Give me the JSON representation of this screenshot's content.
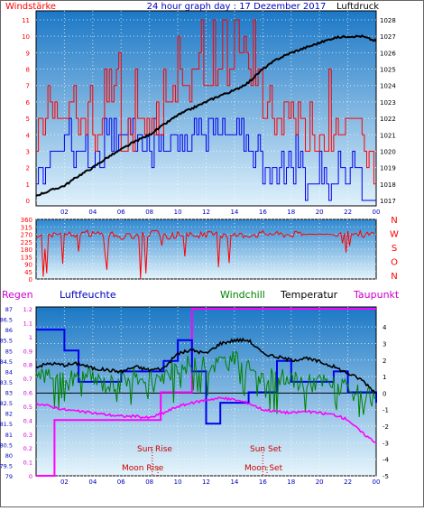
{
  "chart_data": [
    {
      "type": "line",
      "title": "24 hour graph day : 17 Dezember 2017",
      "left_label": "Windstärke",
      "right_label": "Luftdruck",
      "x_ticks": [
        "02",
        "04",
        "06",
        "08",
        "10",
        "12",
        "14",
        "16",
        "18",
        "20",
        "22",
        "00"
      ],
      "y_left_ticks": [
        "0",
        "1",
        "2",
        "3",
        "4",
        "5",
        "6",
        "7",
        "8",
        "9",
        "10",
        "11"
      ],
      "y_right_ticks": [
        "1017",
        "1018",
        "1019",
        "1020",
        "1021",
        "1022",
        "1023",
        "1024",
        "1025",
        "1026",
        "1027",
        "1028"
      ],
      "pressure_hourly": [
        [
          0,
          1017.3
        ],
        [
          1,
          1017.6
        ],
        [
          2,
          1017.9
        ],
        [
          3,
          1018.5
        ],
        [
          4,
          1019.0
        ],
        [
          5,
          1019.6
        ],
        [
          6,
          1020.1
        ],
        [
          7,
          1020.6
        ],
        [
          8,
          1021.0
        ],
        [
          9,
          1021.6
        ],
        [
          10,
          1022.2
        ],
        [
          11,
          1022.6
        ],
        [
          12,
          1023.0
        ],
        [
          13,
          1023.4
        ],
        [
          14,
          1023.7
        ],
        [
          15,
          1024.2
        ],
        [
          16,
          1025.0
        ],
        [
          17,
          1025.6
        ],
        [
          18,
          1026.0
        ],
        [
          19,
          1026.3
        ],
        [
          20,
          1026.6
        ],
        [
          21,
          1026.9
        ],
        [
          22,
          1027.0
        ],
        [
          23,
          1027.0
        ],
        [
          24,
          1026.7
        ]
      ],
      "wind_gust_level_hourly": [
        4,
        5,
        5,
        5,
        4,
        7,
        4,
        5,
        5,
        6,
        7,
        8,
        8,
        8,
        9,
        7,
        5,
        5,
        5,
        3,
        4,
        4,
        5,
        2
      ],
      "wind_avg_level_hourly": [
        2,
        3,
        3,
        3,
        3,
        4,
        4,
        3,
        3,
        3,
        4,
        4,
        4,
        4,
        4,
        3,
        2,
        2,
        2,
        1,
        1,
        2,
        2,
        0
      ]
    },
    {
      "type": "line",
      "title": "",
      "y_ticks": [
        "0",
        "45",
        "90",
        "135",
        "180",
        "225",
        "270",
        "315",
        "360"
      ],
      "direction_labels": [
        "N",
        "W",
        "S",
        "O",
        "N"
      ],
      "wind_direction_hourly": [
        260,
        270,
        265,
        275,
        270,
        265,
        255,
        270,
        275,
        260,
        270,
        265,
        270,
        260,
        265,
        270,
        275,
        270,
        270,
        270,
        265,
        270,
        275,
        270
      ]
    },
    {
      "type": "line",
      "title": "",
      "legend": [
        "Regen",
        "Luftfeuchte",
        "Windchill",
        "Temperatur",
        "Taupunkt"
      ],
      "x_ticks": [
        "02",
        "04",
        "06",
        "08",
        "10",
        "12",
        "14",
        "16",
        "18",
        "20",
        "22",
        "00"
      ],
      "rain_ticks": [
        "0",
        "0.1",
        "0.2",
        "0.3",
        "0.4",
        "0.5",
        "0.6",
        "0.7",
        "0.8",
        "0.9",
        "1",
        "1.1",
        "1.2"
      ],
      "humidity_ticks": [
        "79",
        "80",
        "81",
        "82",
        "83",
        "84",
        "85",
        "86",
        "87"
      ],
      "temp_ticks": [
        "-5",
        "-4",
        "-3",
        "-2",
        "-1",
        "0",
        "1",
        "2",
        "3",
        "4"
      ],
      "annotations": {
        "sun_rise": "Sun Rise",
        "sun_set": "Sun Set",
        "moon_rise": "Moon Rise",
        "moon_set": "Moon Set"
      },
      "temperature_hourly": [
        [
          0,
          1.6
        ],
        [
          1,
          1.8
        ],
        [
          2,
          1.7
        ],
        [
          3,
          1.8
        ],
        [
          4,
          1.5
        ],
        [
          5,
          1.4
        ],
        [
          6,
          1.3
        ],
        [
          7,
          1.6
        ],
        [
          8,
          1.4
        ],
        [
          9,
          1.5
        ],
        [
          10,
          2.4
        ],
        [
          11,
          2.6
        ],
        [
          12,
          2.4
        ],
        [
          13,
          3.0
        ],
        [
          14,
          3.2
        ],
        [
          15,
          3.2
        ],
        [
          16,
          2.4
        ],
        [
          17,
          2.2
        ],
        [
          18,
          2.0
        ],
        [
          19,
          2.1
        ],
        [
          20,
          1.9
        ],
        [
          21,
          1.6
        ],
        [
          22,
          1.2
        ],
        [
          23,
          0.8
        ],
        [
          24,
          0.0
        ]
      ],
      "windchill_hourly": [
        [
          0,
          1.0
        ],
        [
          1,
          1.2
        ],
        [
          2,
          0.6
        ],
        [
          3,
          1.0
        ],
        [
          4,
          0.9
        ],
        [
          5,
          0.5
        ],
        [
          6,
          0.8
        ],
        [
          7,
          1.1
        ],
        [
          8,
          1.0
        ],
        [
          9,
          0.8
        ],
        [
          10,
          1.6
        ],
        [
          11,
          1.8
        ],
        [
          12,
          1.6
        ],
        [
          13,
          1.9
        ],
        [
          14,
          2.0
        ],
        [
          15,
          1.8
        ],
        [
          16,
          1.0
        ],
        [
          17,
          0.9
        ],
        [
          18,
          0.8
        ],
        [
          19,
          0.6
        ],
        [
          20,
          0.7
        ],
        [
          21,
          0.5
        ],
        [
          22,
          0.2
        ],
        [
          23,
          -0.2
        ],
        [
          24,
          -0.3
        ]
      ],
      "dewpoint_hourly": [
        [
          0,
          -0.6
        ],
        [
          1,
          -0.8
        ],
        [
          2,
          -1.0
        ],
        [
          3,
          -1.1
        ],
        [
          4,
          -1.2
        ],
        [
          5,
          -1.3
        ],
        [
          6,
          -1.4
        ],
        [
          7,
          -1.4
        ],
        [
          8,
          -1.5
        ],
        [
          9,
          -1.2
        ],
        [
          10,
          -0.8
        ],
        [
          11,
          -0.6
        ],
        [
          12,
          -0.4
        ],
        [
          13,
          -0.3
        ],
        [
          14,
          -0.4
        ],
        [
          15,
          -0.6
        ],
        [
          16,
          -1.0
        ],
        [
          17,
          -1.1
        ],
        [
          18,
          -1.2
        ],
        [
          19,
          -1.1
        ],
        [
          20,
          -1.2
        ],
        [
          21,
          -1.3
        ],
        [
          22,
          -1.6
        ],
        [
          23,
          -2.4
        ],
        [
          24,
          -3.0
        ]
      ],
      "humidity_steps": [
        [
          0,
          86.0
        ],
        [
          2,
          85.0
        ],
        [
          3,
          83.5
        ],
        [
          6,
          84.0
        ],
        [
          8,
          84.0
        ],
        [
          9,
          84.5
        ],
        [
          10,
          85.5
        ],
        [
          11,
          84.0
        ],
        [
          12,
          81.5
        ],
        [
          13,
          82.5
        ],
        [
          15,
          83.0
        ],
        [
          17,
          84.5
        ],
        [
          18,
          83.5
        ],
        [
          21,
          84.0
        ],
        [
          22,
          83.0
        ],
        [
          24,
          82.5
        ]
      ],
      "rain_cumulative": [
        [
          0,
          0
        ],
        [
          1.3,
          0
        ],
        [
          1.3,
          0.4
        ],
        [
          8.8,
          0.4
        ],
        [
          8.8,
          0.6
        ],
        [
          11,
          0.6
        ],
        [
          11,
          1.2
        ],
        [
          24,
          1.2
        ]
      ]
    }
  ]
}
